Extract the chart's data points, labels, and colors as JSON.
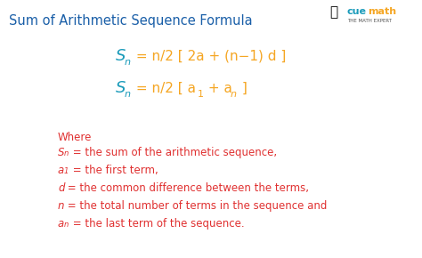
{
  "title": "Sum of Arithmetic Sequence Formula",
  "title_color": "#1a5fa8",
  "title_fontsize": 10.5,
  "formula_S_color": "#1a9bba",
  "formula_eq_color": "#f5a623",
  "where_color": "#e03030",
  "def_color": "#e03030",
  "bg_color": "#ffffff",
  "formula1_eq": " = n/2 [ 2a + (n−1) d ]",
  "formula2_eq_p1": " = n/2 [ a",
  "formula2_eq_p2": " + a",
  "formula2_eq_p3": " ]",
  "where_text": "Where",
  "defs": [
    [
      "S",
      "n",
      " = the sum of the arithmetic sequence,"
    ],
    [
      "a",
      "1",
      " = the first term,"
    ],
    [
      "d",
      "",
      " = the common difference between the terms,"
    ],
    [
      "n",
      "",
      " = the total number of terms in the sequence and"
    ],
    [
      "a",
      "n",
      " = the last term of the sequence."
    ]
  ]
}
